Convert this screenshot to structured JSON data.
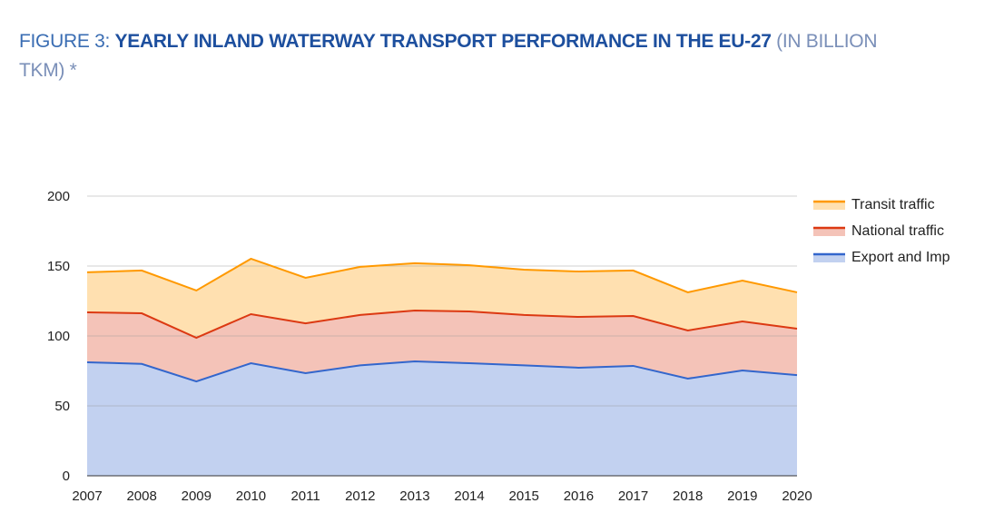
{
  "title": {
    "prefix": "FIGURE 3: ",
    "main": "YEARLY INLAND WATERWAY TRANSPORT PERFORMANCE IN THE EU-27",
    "suffix": " (IN BILLION TKM) *"
  },
  "chart_data": {
    "type": "area",
    "stacked": true,
    "categories": [
      "2007",
      "2008",
      "2009",
      "2010",
      "2011",
      "2012",
      "2013",
      "2014",
      "2015",
      "2016",
      "2017",
      "2018",
      "2019",
      "2020"
    ],
    "series": [
      {
        "name": "Export and Imp",
        "color": "#3366cc",
        "fill": "#c2d1f0",
        "values": [
          81.2,
          80.0,
          67.5,
          80.5,
          73.4,
          79.0,
          81.8,
          80.5,
          79.0,
          77.3,
          78.6,
          69.5,
          75.3,
          72.0
        ]
      },
      {
        "name": "National traffic",
        "color": "#dc3912",
        "fill": "#f4c3b8",
        "values": [
          35.7,
          36.2,
          31.2,
          35.1,
          35.6,
          36.0,
          36.4,
          37.0,
          36.0,
          36.3,
          35.7,
          34.4,
          35.1,
          33.2
        ]
      },
      {
        "name": "Transit traffic",
        "color": "#ff9900",
        "fill": "#ffe0b0",
        "values": [
          28.6,
          30.6,
          33.8,
          39.6,
          32.6,
          34.4,
          33.8,
          33.1,
          32.4,
          32.5,
          32.5,
          27.3,
          29.2,
          26.0
        ]
      }
    ],
    "yticks": [
      "0",
      "50",
      "100",
      "150",
      "200"
    ],
    "ylim": [
      0,
      200
    ],
    "grid": true,
    "legend": "right"
  }
}
